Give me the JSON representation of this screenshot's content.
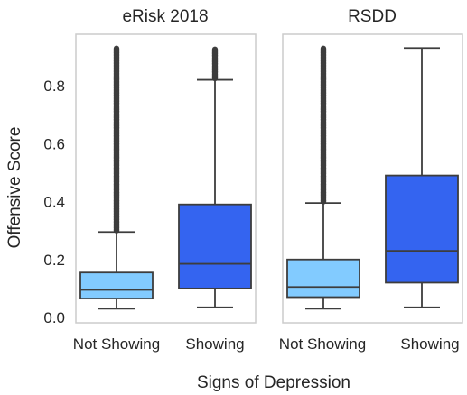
{
  "chart_data": {
    "type": "box",
    "ylabel": "Offensive Score",
    "xlabel": "Signs of Depression",
    "ylim": [
      0.0,
      0.95
    ],
    "yticks": [
      0.0,
      0.2,
      0.4,
      0.6,
      0.8
    ],
    "ytick_labels": [
      "0.0",
      "0.2",
      "0.4",
      "0.6",
      "0.8"
    ],
    "grid": false,
    "panels": [
      {
        "title": "eRisk 2018",
        "categories": [
          "Not Showing",
          "Showing"
        ],
        "boxes": [
          {
            "category": "Not Showing",
            "min": 0.03,
            "q1": 0.065,
            "median": 0.095,
            "q3": 0.155,
            "whisker_high": 0.295,
            "outliers_from": 0.3,
            "outliers_to": 0.93,
            "color": "#82cbff"
          },
          {
            "category": "Showing",
            "min": 0.035,
            "q1": 0.1,
            "median": 0.185,
            "q3": 0.39,
            "whisker_high": 0.82,
            "outliers_from": 0.825,
            "outliers_to": 0.925,
            "color": "#3464f0"
          }
        ]
      },
      {
        "title": "RSDD",
        "categories": [
          "Not Showing",
          "Showing"
        ],
        "boxes": [
          {
            "category": "Not Showing",
            "min": 0.03,
            "q1": 0.07,
            "median": 0.105,
            "q3": 0.2,
            "whisker_high": 0.395,
            "outliers_from": 0.4,
            "outliers_to": 0.93,
            "color": "#82cbff"
          },
          {
            "category": "Showing",
            "min": 0.035,
            "q1": 0.12,
            "median": 0.23,
            "q3": 0.49,
            "whisker_high": 0.93,
            "outliers_from": null,
            "outliers_to": null,
            "color": "#3464f0"
          }
        ]
      }
    ]
  }
}
